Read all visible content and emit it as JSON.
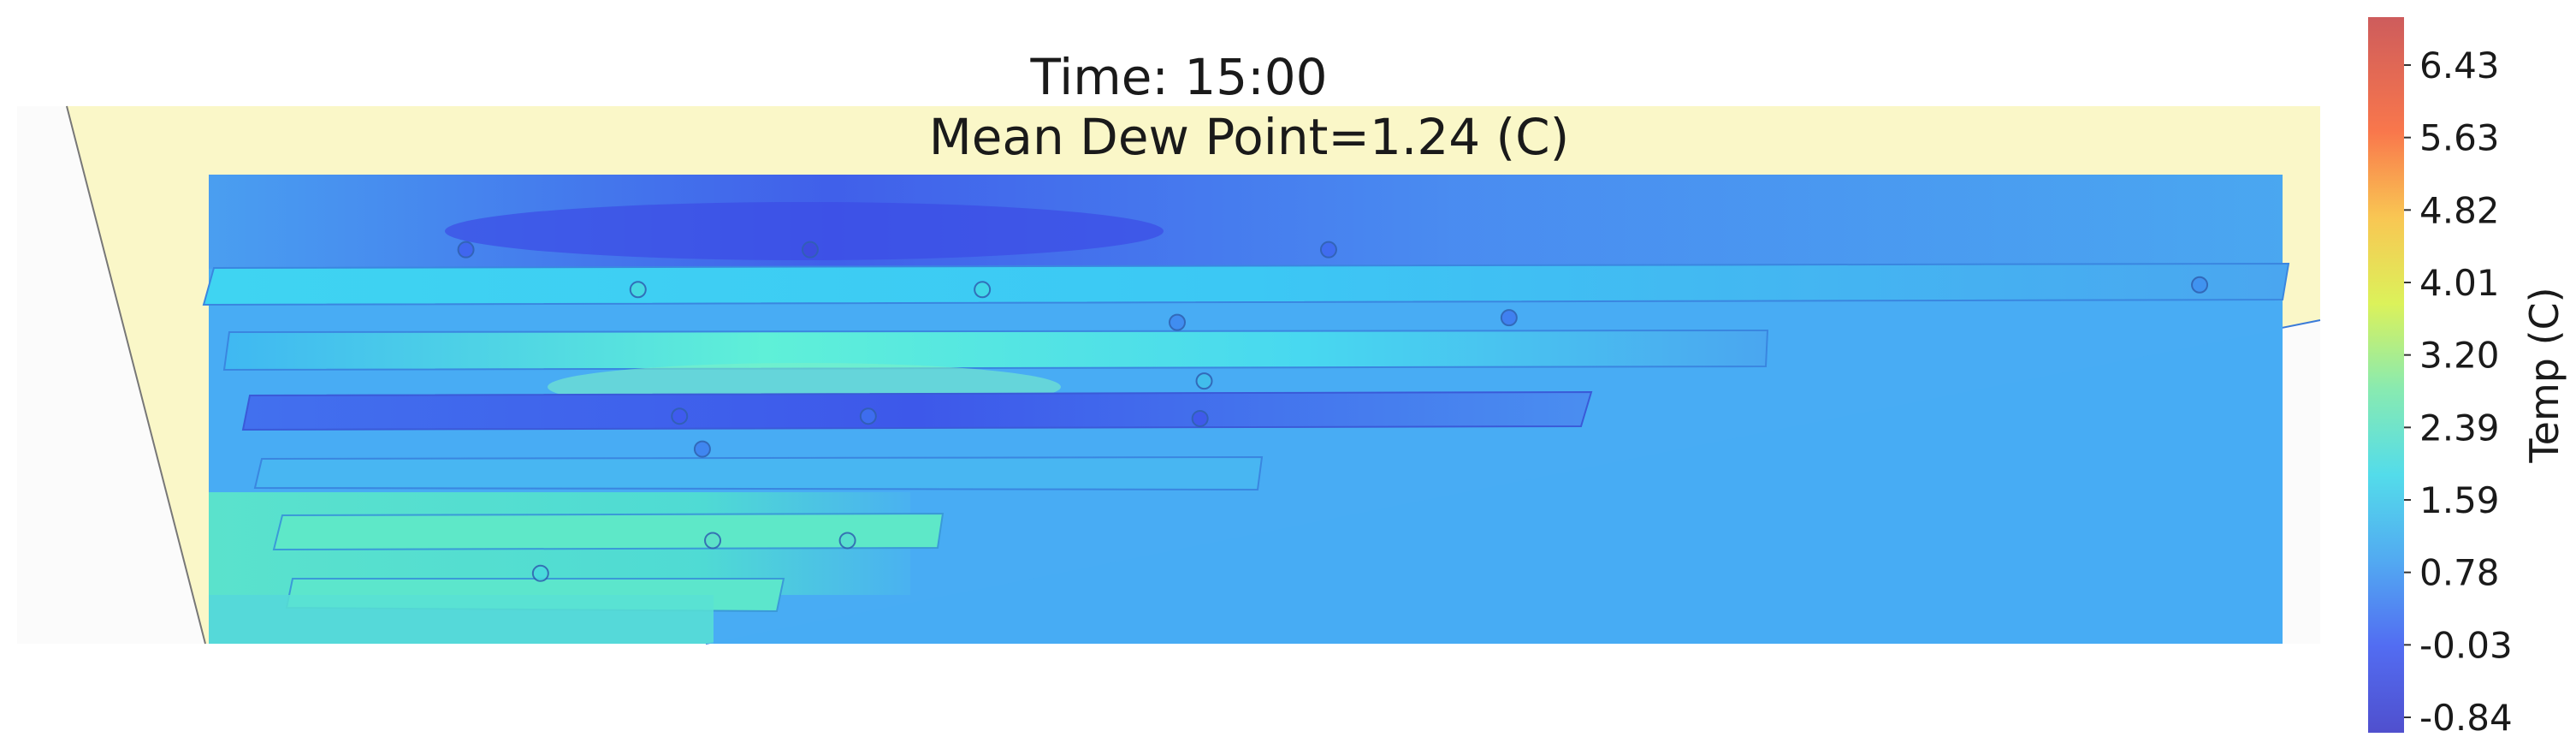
{
  "chart_data": {
    "type": "heatmap",
    "title": "Time: 15:00",
    "subtitle": "Mean Dew Point=1.24 (C)",
    "colorbar": {
      "label": "Temp (C)",
      "ticks": [
        "6.43",
        "5.63",
        "4.82",
        "4.01",
        "3.20",
        "2.39",
        "1.59",
        "0.78",
        "-0.03",
        "-0.84"
      ],
      "min": -0.84,
      "max": 6.43,
      "colormap": "jet"
    },
    "field_mean_value": 1.24,
    "sensors": [
      {
        "x": 0.124,
        "y": 0.84,
        "value": 0.1
      },
      {
        "x": 0.29,
        "y": 0.84,
        "value": -0.4
      },
      {
        "x": 0.54,
        "y": 0.84,
        "value": 0.2
      },
      {
        "x": 0.207,
        "y": 0.755,
        "value": 1.9
      },
      {
        "x": 0.373,
        "y": 0.755,
        "value": 1.8
      },
      {
        "x": 0.467,
        "y": 0.685,
        "value": 0.6
      },
      {
        "x": 0.627,
        "y": 0.695,
        "value": 0.4
      },
      {
        "x": 0.96,
        "y": 0.765,
        "value": 0.7
      },
      {
        "x": 0.48,
        "y": 0.56,
        "value": 1.4
      },
      {
        "x": 0.227,
        "y": 0.485,
        "value": 0.0
      },
      {
        "x": 0.318,
        "y": 0.485,
        "value": 0.3
      },
      {
        "x": 0.478,
        "y": 0.48,
        "value": -0.1
      },
      {
        "x": 0.238,
        "y": 0.415,
        "value": 0.5
      },
      {
        "x": 0.243,
        "y": 0.22,
        "value": 2.2
      },
      {
        "x": 0.308,
        "y": 0.22,
        "value": 2.1
      },
      {
        "x": 0.16,
        "y": 0.15,
        "value": 1.9
      }
    ]
  }
}
